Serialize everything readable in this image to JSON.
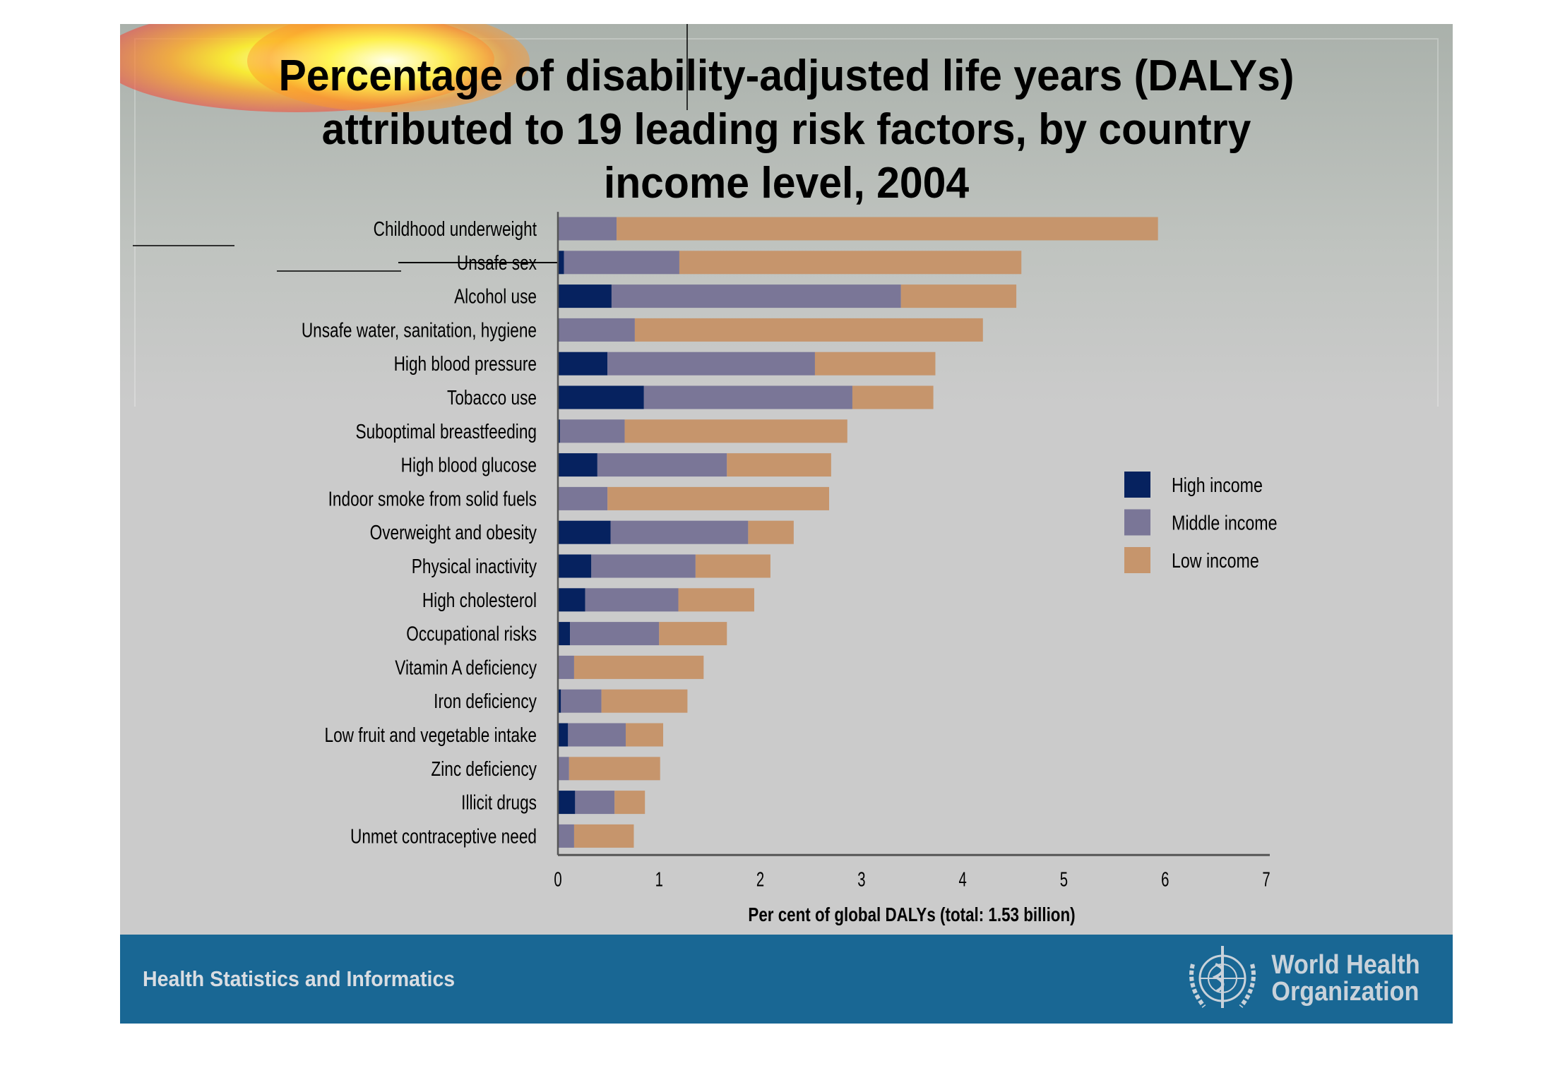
{
  "title_lines": [
    "Percentage of disability-adjusted life years (DALYs)",
    "attributed to 19 leading risk factors, by country",
    "income level, 2004"
  ],
  "footer": {
    "left_text": "Health Statistics and Informatics",
    "logo_line1": "World Health",
    "logo_line2": "Organization"
  },
  "chart_data": {
    "type": "bar",
    "orientation": "horizontal",
    "stacked": true,
    "title": "Percentage of disability-adjusted life years (DALYs) attributed to 19 leading risk factors, by country income level, 2004",
    "xlabel": "Per cent of global DALYs (total: 1.53 billion)",
    "ylabel": "",
    "xlim": [
      0,
      7
    ],
    "xticks": [
      "0",
      "1",
      "2",
      "3",
      "4",
      "5",
      "6",
      "7"
    ],
    "grid": false,
    "legend_position": "right",
    "categories": [
      "Childhood underweight",
      "Unsafe sex",
      "Alcohol use",
      "Unsafe water, sanitation, hygiene",
      "High blood pressure",
      "Tobacco use",
      "Suboptimal breastfeeding",
      "High blood glucose",
      "Indoor smoke from solid fuels",
      "Overweight and obesity",
      "Physical inactivity",
      "High cholesterol",
      "Occupational risks",
      "Vitamin A deficiency",
      "Iron deficiency",
      "Low fruit and vegetable intake",
      "Zinc deficiency",
      "Illicit drugs",
      "Unmet contraceptive need"
    ],
    "series": [
      {
        "name": "High income",
        "color": "#06225f",
        "values": [
          0.0,
          0.06,
          0.53,
          0.01,
          0.49,
          0.85,
          0.02,
          0.39,
          0.0,
          0.52,
          0.33,
          0.27,
          0.12,
          0.0,
          0.03,
          0.1,
          0.0,
          0.17,
          0.0
        ]
      },
      {
        "name": "Middle income",
        "color": "#7a7697",
        "values": [
          0.58,
          1.14,
          2.86,
          0.75,
          2.05,
          2.06,
          0.64,
          1.28,
          0.49,
          1.36,
          1.03,
          0.92,
          0.88,
          0.16,
          0.4,
          0.57,
          0.11,
          0.39,
          0.16
        ]
      },
      {
        "name": "Low income",
        "color": "#c6956c",
        "values": [
          5.35,
          3.38,
          1.14,
          3.44,
          1.19,
          0.8,
          2.2,
          1.03,
          2.19,
          0.45,
          0.74,
          0.75,
          0.67,
          1.28,
          0.85,
          0.37,
          0.9,
          0.3,
          0.59
        ]
      }
    ]
  },
  "colors": {
    "footer_band": "#196794",
    "slide_background": "#cbcbcb"
  }
}
